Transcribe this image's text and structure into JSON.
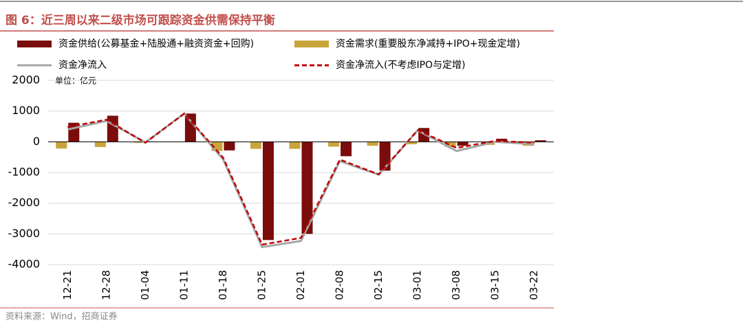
{
  "chart_data": {
    "type": "bar-line",
    "title": "图 6：近三周以来二级市场可跟踪资金供需保持平衡",
    "annotation": "单位：亿元",
    "source": "资料来源：Wind，招商证券",
    "categories": [
      "12-21",
      "12-28",
      "01-04",
      "01-11",
      "01-18",
      "01-25",
      "02-01",
      "02-08",
      "02-15",
      "03-01",
      "03-08",
      "03-15",
      "03-22"
    ],
    "series": [
      {
        "name": "资金供给(公募基金+陆股通+融资资金+回购)",
        "type": "bar",
        "color": "#7b0c0c",
        "values": [
          620,
          850,
          10,
          920,
          -280,
          -3200,
          -3000,
          -470,
          -940,
          450,
          -130,
          100,
          50
        ]
      },
      {
        "name": "资金需求(重要股东净减持+IPO+现金定增)",
        "type": "bar",
        "color": "#c9a53b",
        "values": [
          -220,
          -170,
          -30,
          0,
          -300,
          -230,
          -230,
          -160,
          -130,
          -80,
          -170,
          -100,
          -130
        ]
      },
      {
        "name": "资金净流入",
        "type": "line",
        "color": "#a6a6a6",
        "dashed": false,
        "values": [
          400,
          680,
          -20,
          920,
          -580,
          -3430,
          -3230,
          -630,
          -1070,
          370,
          -300,
          0,
          -80
        ]
      },
      {
        "name": "资金净流入(不考虑IPO与定增)",
        "type": "line",
        "color": "#c00000",
        "dashed": true,
        "values": [
          480,
          720,
          -30,
          920,
          -520,
          -3350,
          -3130,
          -580,
          -1060,
          380,
          -200,
          30,
          -30
        ]
      }
    ],
    "ylim": [
      -4000,
      2000
    ],
    "yticks": [
      2000,
      1000,
      0,
      -1000,
      -2000,
      -3000,
      -4000
    ],
    "grid": true
  }
}
